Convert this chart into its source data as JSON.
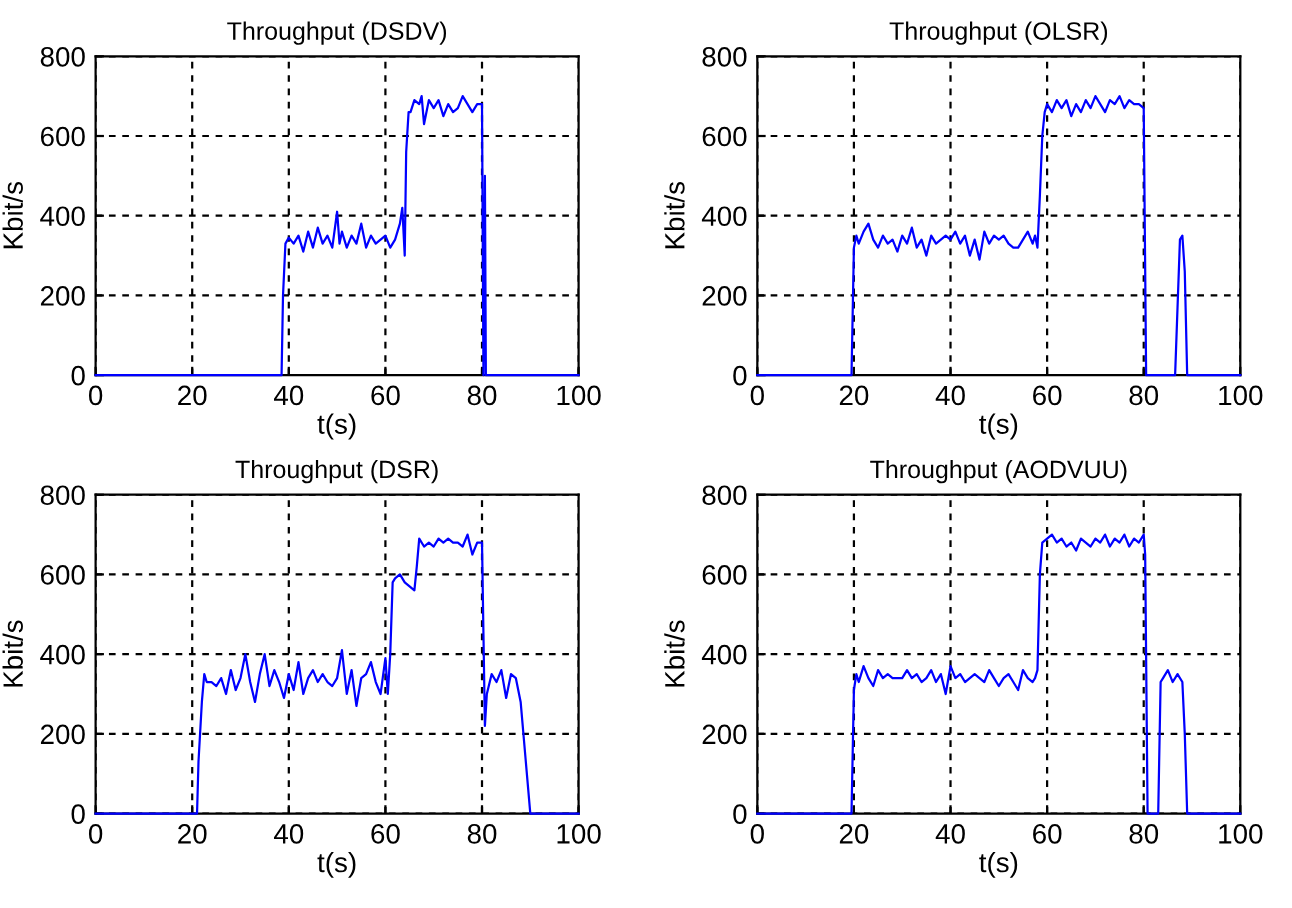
{
  "chart_data": [
    {
      "type": "line",
      "title": "Throughput (DSDV)",
      "xlabel": "t(s)",
      "ylabel": "Kbit/s",
      "xlim": [
        0,
        100
      ],
      "ylim": [
        0,
        800
      ],
      "xticks": [
        0,
        20,
        40,
        60,
        80,
        100
      ],
      "yticks": [
        0,
        200,
        400,
        600,
        800
      ],
      "grid": true,
      "line_style": "solid",
      "marker": "none",
      "legend": false,
      "series": [
        {
          "color": "#0000ff",
          "x": [
            0,
            38.5,
            38.8,
            39.3,
            40,
            41,
            42,
            43,
            44,
            45,
            46,
            47,
            48,
            49,
            50,
            50.5,
            51,
            52,
            53,
            54,
            55,
            56,
            57,
            58,
            59,
            60,
            61,
            62,
            63,
            63.5,
            64,
            64.3,
            64.8,
            65.2,
            66,
            67,
            67.5,
            68,
            69,
            70,
            71,
            72,
            73,
            74,
            75,
            76,
            77,
            78,
            79,
            80,
            80.3,
            80.6,
            80.8,
            81,
            100
          ],
          "values": [
            0,
            0,
            200,
            330,
            345,
            330,
            350,
            310,
            360,
            320,
            370,
            330,
            350,
            320,
            410,
            330,
            360,
            320,
            350,
            330,
            380,
            320,
            350,
            330,
            340,
            350,
            320,
            340,
            380,
            420,
            300,
            560,
            660,
            660,
            690,
            680,
            700,
            630,
            690,
            670,
            690,
            650,
            680,
            660,
            670,
            700,
            680,
            660,
            680,
            680,
            0,
            500,
            0,
            0,
            0
          ]
        }
      ]
    },
    {
      "type": "line",
      "title": "Throughput (OLSR)",
      "xlabel": "t(s)",
      "ylabel": "Kbit/s",
      "xlim": [
        0,
        100
      ],
      "ylim": [
        0,
        800
      ],
      "xticks": [
        0,
        20,
        40,
        60,
        80,
        100
      ],
      "yticks": [
        0,
        200,
        400,
        600,
        800
      ],
      "grid": true,
      "line_style": "solid",
      "marker": "none",
      "legend": false,
      "series": [
        {
          "color": "#0000ff",
          "x": [
            0,
            19.5,
            20,
            20.5,
            21,
            22,
            23,
            24,
            25,
            26,
            27,
            28,
            29,
            30,
            31,
            32,
            33,
            34,
            35,
            36,
            37,
            38,
            39,
            40,
            41,
            42,
            43,
            44,
            45,
            46,
            47,
            48,
            49,
            50,
            51,
            52,
            53,
            54,
            55,
            56,
            57,
            57.5,
            58,
            58.5,
            59,
            59.5,
            60,
            61,
            62,
            63,
            64,
            65,
            66,
            67,
            68,
            69,
            70,
            71,
            72,
            73,
            74,
            75,
            76,
            77,
            78,
            79,
            80,
            80.5,
            86.5,
            87,
            87.5,
            88,
            88.5,
            89,
            100
          ],
          "values": [
            0,
            0,
            320,
            350,
            330,
            360,
            380,
            340,
            320,
            350,
            330,
            340,
            310,
            350,
            330,
            370,
            320,
            340,
            300,
            350,
            330,
            340,
            350,
            340,
            360,
            330,
            350,
            300,
            340,
            290,
            360,
            330,
            350,
            340,
            350,
            330,
            320,
            320,
            340,
            360,
            330,
            350,
            320,
            450,
            600,
            660,
            680,
            660,
            690,
            670,
            690,
            650,
            680,
            660,
            690,
            670,
            700,
            680,
            660,
            690,
            680,
            700,
            670,
            690,
            680,
            680,
            670,
            0,
            0,
            170,
            340,
            350,
            260,
            0,
            0
          ]
        }
      ]
    },
    {
      "type": "line",
      "title": "Throughput (DSR)",
      "xlabel": "t(s)",
      "ylabel": "Kbit/s",
      "xlim": [
        0,
        100
      ],
      "ylim": [
        0,
        800
      ],
      "xticks": [
        0,
        20,
        40,
        60,
        80,
        100
      ],
      "yticks": [
        0,
        200,
        400,
        600,
        800
      ],
      "grid": true,
      "line_style": "solid",
      "marker": "none",
      "legend": false,
      "series": [
        {
          "color": "#0000ff",
          "x": [
            0,
            21,
            21.3,
            22,
            22.5,
            23,
            24,
            25,
            26,
            27,
            28,
            29,
            30,
            31,
            32,
            33,
            34,
            35,
            36,
            37,
            38,
            39,
            40,
            41,
            42,
            43,
            44,
            45,
            46,
            47,
            48,
            49,
            50,
            51,
            52,
            53,
            54,
            55,
            56,
            57,
            58,
            59,
            60,
            60.5,
            61,
            61.5,
            62,
            63,
            64,
            65,
            66,
            66.5,
            67,
            68,
            69,
            70,
            71,
            72,
            73,
            74,
            75,
            76,
            77,
            78,
            79,
            80,
            80.3,
            80.6,
            81,
            82,
            83,
            84,
            85,
            86,
            87,
            88,
            89,
            90,
            100
          ],
          "values": [
            0,
            0,
            130,
            280,
            350,
            330,
            330,
            320,
            340,
            300,
            360,
            310,
            340,
            400,
            330,
            280,
            350,
            400,
            320,
            360,
            330,
            290,
            350,
            310,
            380,
            300,
            340,
            360,
            330,
            350,
            330,
            320,
            340,
            410,
            300,
            360,
            270,
            340,
            350,
            380,
            330,
            300,
            390,
            300,
            400,
            580,
            590,
            600,
            580,
            570,
            560,
            620,
            690,
            670,
            680,
            670,
            690,
            680,
            690,
            680,
            680,
            670,
            700,
            650,
            680,
            680,
            450,
            220,
            300,
            350,
            330,
            360,
            290,
            350,
            340,
            280,
            140,
            0,
            0
          ]
        }
      ]
    },
    {
      "type": "line",
      "title": "Throughput (AODVUU)",
      "xlabel": "t(s)",
      "ylabel": "Kbit/s",
      "xlim": [
        0,
        100
      ],
      "ylim": [
        0,
        800
      ],
      "xticks": [
        0,
        20,
        40,
        60,
        80,
        100
      ],
      "yticks": [
        0,
        200,
        400,
        600,
        800
      ],
      "grid": true,
      "line_style": "solid",
      "marker": "none",
      "legend": false,
      "series": [
        {
          "color": "#0000ff",
          "x": [
            0,
            19.5,
            20,
            20.5,
            21,
            22,
            23,
            24,
            25,
            26,
            27,
            28,
            29,
            30,
            31,
            32,
            33,
            34,
            35,
            36,
            37,
            38,
            39,
            40,
            41,
            42,
            43,
            44,
            45,
            46,
            47,
            48,
            49,
            50,
            51,
            52,
            53,
            54,
            55,
            56,
            57,
            57.5,
            58,
            58.5,
            59,
            60,
            61,
            62,
            63,
            64,
            65,
            66,
            67,
            68,
            69,
            70,
            71,
            72,
            73,
            74,
            75,
            76,
            77,
            78,
            79,
            80,
            80.3,
            80.8,
            83,
            83.5,
            84,
            85,
            86,
            87,
            88,
            88.5,
            89,
            100
          ],
          "values": [
            0,
            0,
            310,
            350,
            330,
            370,
            340,
            320,
            360,
            340,
            350,
            340,
            340,
            340,
            360,
            340,
            350,
            330,
            340,
            360,
            330,
            350,
            300,
            370,
            340,
            350,
            330,
            340,
            350,
            340,
            330,
            360,
            340,
            320,
            340,
            350,
            330,
            310,
            360,
            340,
            330,
            340,
            360,
            600,
            680,
            690,
            700,
            680,
            690,
            670,
            680,
            660,
            690,
            680,
            670,
            690,
            680,
            700,
            670,
            690,
            680,
            700,
            670,
            690,
            680,
            700,
            650,
            0,
            0,
            330,
            340,
            360,
            330,
            350,
            330,
            200,
            0,
            0
          ]
        }
      ]
    }
  ]
}
